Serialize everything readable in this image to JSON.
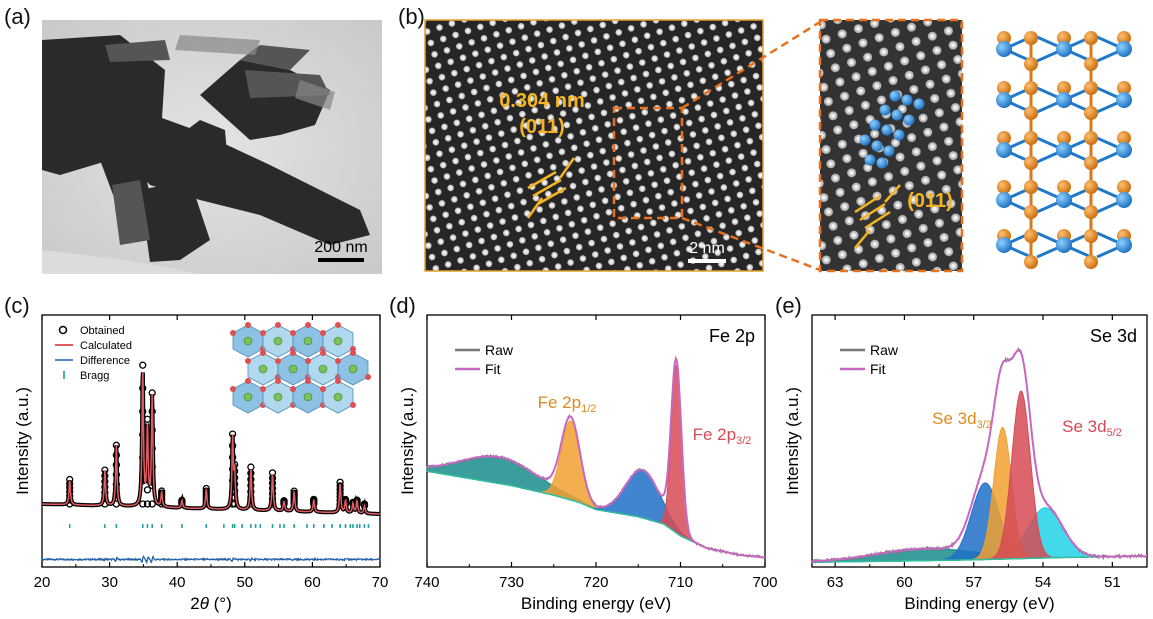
{
  "panels": {
    "a": {
      "label": "(a)",
      "scalebar": "200 nm"
    },
    "b": {
      "label": "(b)",
      "spacing": "0.304 nm",
      "plane": "(011)",
      "scalebar": "2 nm",
      "zoom_plane": "(011)"
    },
    "c": {
      "label": "(c)"
    },
    "d": {
      "label": "(d)"
    },
    "e": {
      "label": "(e)"
    }
  },
  "colors": {
    "fe_orange": "#e08a1e",
    "se_blue": "#1f78c8",
    "fit_red": "#d64a55",
    "raw_gray": "#777777",
    "fit_pink": "#c768c2",
    "accent_yellow": "#f5b423"
  },
  "chart_data": [
    {
      "id": "c",
      "type": "line",
      "title": "",
      "xlabel_prefix": "2",
      "xlabel_theta": "θ",
      "xlabel_suffix": " (°)",
      "ylabel": "Intensity (a.u.)",
      "xlim": [
        20,
        70
      ],
      "xticks": [
        20,
        30,
        40,
        50,
        60,
        70
      ],
      "legend": [
        "Obtained",
        "Calculated",
        "Difference",
        "Bragg"
      ],
      "baseline": 0.25,
      "peaks": [
        {
          "x": 24.1,
          "h": 0.1
        },
        {
          "x": 29.3,
          "h": 0.14
        },
        {
          "x": 31.0,
          "h": 0.24
        },
        {
          "x": 34.9,
          "h": 0.55
        },
        {
          "x": 35.6,
          "h": 0.32
        },
        {
          "x": 36.3,
          "h": 0.44
        },
        {
          "x": 37.7,
          "h": 0.06
        },
        {
          "x": 40.7,
          "h": 0.03
        },
        {
          "x": 44.3,
          "h": 0.08
        },
        {
          "x": 48.2,
          "h": 0.28
        },
        {
          "x": 48.5,
          "h": 0.14
        },
        {
          "x": 50.9,
          "h": 0.17
        },
        {
          "x": 54.1,
          "h": 0.15
        },
        {
          "x": 55.8,
          "h": 0.04
        },
        {
          "x": 57.3,
          "h": 0.08
        },
        {
          "x": 60.2,
          "h": 0.05
        },
        {
          "x": 64.1,
          "h": 0.12
        },
        {
          "x": 64.9,
          "h": 0.05
        },
        {
          "x": 66.0,
          "h": 0.04
        },
        {
          "x": 66.6,
          "h": 0.05
        },
        {
          "x": 67.7,
          "h": 0.03
        }
      ],
      "bragg": [
        24.1,
        29.3,
        31.0,
        34.9,
        35.6,
        36.3,
        37.7,
        40.7,
        44.3,
        46.9,
        48.2,
        48.5,
        49.6,
        50.9,
        51.6,
        52.3,
        54.1,
        55.2,
        55.8,
        57.3,
        59.2,
        60.2,
        61.7,
        62.9,
        64.1,
        64.9,
        65.6,
        66.0,
        66.6,
        67.0,
        67.7,
        68.3
      ]
    },
    {
      "id": "d",
      "type": "line",
      "title": "Fe 2p",
      "xlabel": "Binding energy (eV)",
      "ylabel": "Intensity (a.u.)",
      "xlim": [
        740,
        700
      ],
      "xticks": [
        740,
        730,
        720,
        710,
        700
      ],
      "legend": [
        "Raw",
        "Fit"
      ],
      "annot1": "Fe 2p",
      "annot1_sub": "1/2",
      "annot2": "Fe 2p",
      "annot2_sub": "3/2",
      "background": [
        [
          740,
          0.4
        ],
        [
          735,
          0.37
        ],
        [
          730,
          0.34
        ],
        [
          725,
          0.3
        ],
        [
          722,
          0.27
        ],
        [
          720,
          0.24
        ],
        [
          715,
          0.21
        ],
        [
          712,
          0.18
        ],
        [
          710,
          0.13
        ],
        [
          707,
          0.08
        ],
        [
          703,
          0.05
        ],
        [
          700,
          0.04
        ]
      ],
      "components": [
        {
          "name": "broad-sat",
          "c": 731.5,
          "w": 4.5,
          "h": 0.11,
          "color": "#1a8c8c"
        },
        {
          "name": "fe2p12",
          "c": 723.0,
          "w": 1.1,
          "h": 0.33,
          "color": "#f0a030"
        },
        {
          "name": "sat",
          "c": 714.5,
          "w": 2.0,
          "h": 0.2,
          "color": "#2070c8"
        },
        {
          "name": "fe2p32",
          "c": 710.5,
          "w": 0.6,
          "h": 0.7,
          "color": "#d64a55"
        }
      ]
    },
    {
      "id": "e",
      "type": "line",
      "title": "Se 3d",
      "xlabel": "Binding energy (eV)",
      "ylabel": "Intensity (a.u.)",
      "xlim": [
        64,
        49.5
      ],
      "xticks": [
        63,
        60,
        57,
        54,
        51
      ],
      "legend": [
        "Raw",
        "Fit"
      ],
      "annot1": "Se 3d",
      "annot1_sub": "3/2",
      "annot2": "Se 3d",
      "annot2_sub": "5/2",
      "background": [
        [
          64,
          0.02
        ],
        [
          60,
          0.025
        ],
        [
          57,
          0.03
        ],
        [
          55,
          0.035
        ],
        [
          53,
          0.04
        ],
        [
          50,
          0.045
        ],
        [
          49.5,
          0.045
        ]
      ],
      "components": [
        {
          "name": "broad",
          "c": 59.0,
          "w": 2.2,
          "h": 0.05,
          "color": "#1a8c8c"
        },
        {
          "name": "blue",
          "c": 56.5,
          "w": 0.6,
          "h": 0.32,
          "color": "#2070c8"
        },
        {
          "name": "cyan",
          "c": 53.9,
          "w": 0.75,
          "h": 0.21,
          "color": "#22d2e6"
        },
        {
          "name": "se3d32",
          "c": 55.75,
          "w": 0.38,
          "h": 0.55,
          "color": "#f0a030"
        },
        {
          "name": "se3d52",
          "c": 54.95,
          "w": 0.4,
          "h": 0.7,
          "color": "#d64a55"
        }
      ]
    }
  ]
}
